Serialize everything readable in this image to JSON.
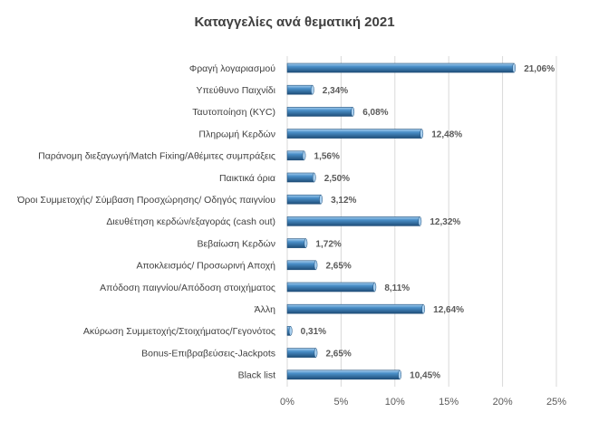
{
  "chart_data": {
    "type": "bar",
    "orientation": "horizontal",
    "title": "Καταγγελίες ανά θεματική 2021",
    "categories": [
      "Φραγή λογαριασμού",
      "Υπεύθυνο Παιχνίδι",
      "Ταυτοποίηση (KYC)",
      "Πληρωμή Κερδών",
      "Παράνομη διεξαγωγή/Match Fixing/Αθέμιτες συμπράξεις",
      "Παικτικά όρια",
      "Όροι Συμμετοχής/ Σύμβαση Προσχώρησης/ Οδηγός παιγνίου",
      "Διευθέτηση κερδών/εξαγοράς (cash out)",
      "Βεβαίωση Κερδών",
      "Αποκλεισμός/ Προσωρινή Αποχή",
      "Απόδοση παιγνίου/Απόδοση στοιχήματος",
      "Άλλη",
      "Ακύρωση Συμμετοχής/Στοιχήματος/Γεγονότος",
      "Bonus-Επιβραβεύσεις-Jackpots",
      "Black list"
    ],
    "values": [
      21.06,
      2.34,
      6.08,
      12.48,
      1.56,
      2.5,
      3.12,
      12.32,
      1.72,
      2.65,
      8.11,
      12.64,
      0.31,
      2.65,
      10.45
    ],
    "value_labels": [
      "21,06%",
      "2,34%",
      "6,08%",
      "12,48%",
      "1,56%",
      "2,50%",
      "3,12%",
      "12,32%",
      "1,72%",
      "2,65%",
      "8,11%",
      "12,64%",
      "0,31%",
      "2,65%",
      "10,45%"
    ],
    "xlim": [
      0,
      25
    ],
    "xticks": [
      0,
      5,
      10,
      15,
      20,
      25
    ],
    "xtick_labels": [
      "0%",
      "5%",
      "10%",
      "15%",
      "20%",
      "25%"
    ],
    "xlabel": "",
    "ylabel": "",
    "grid": true,
    "legend": false,
    "bar_color": "#4A8FC8",
    "bar_dark": "#1F4E79",
    "bar_light": "#A9D0F0",
    "grid_color": "#D9D9D9"
  }
}
